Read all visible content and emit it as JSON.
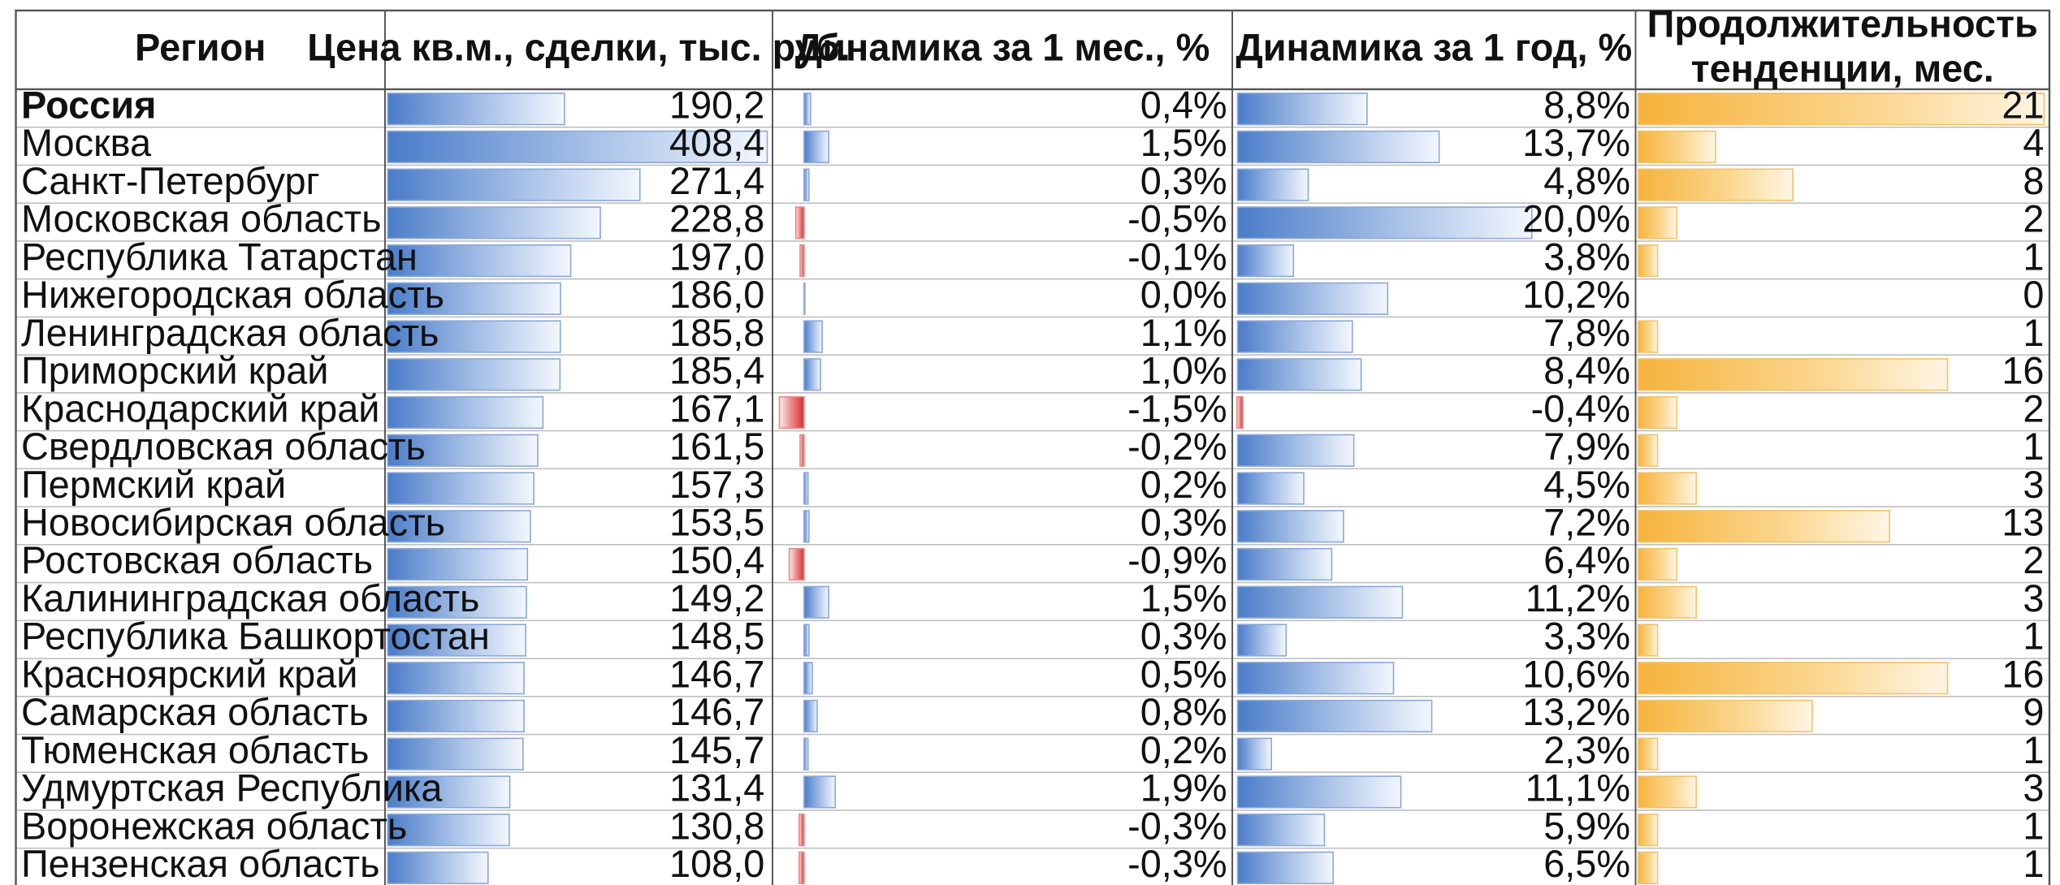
{
  "chart_data": {
    "type": "table",
    "columns": [
      "Регион",
      "Цена кв.м., сделки, тыс. руб.",
      "Динамика за 1 мес., %",
      "Динамика за 1 год, %",
      [
        "Продолжительность",
        "тенденции, мес."
      ]
    ],
    "rows": [
      {
        "region": "Россия",
        "price": 190.2,
        "price_text": "190,2",
        "m1": 0.4,
        "m1_text": "0,4%",
        "y1": 8.8,
        "y1_text": "8,8%",
        "dur": 21,
        "dur_text": "21",
        "bold": true
      },
      {
        "region": "Москва",
        "price": 408.4,
        "price_text": "408,4",
        "m1": 1.5,
        "m1_text": "1,5%",
        "y1": 13.7,
        "y1_text": "13,7%",
        "dur": 4,
        "dur_text": "4"
      },
      {
        "region": "Санкт-Петербург",
        "price": 271.4,
        "price_text": "271,4",
        "m1": 0.3,
        "m1_text": "0,3%",
        "y1": 4.8,
        "y1_text": "4,8%",
        "dur": 8,
        "dur_text": "8"
      },
      {
        "region": "Московская область",
        "price": 228.8,
        "price_text": "228,8",
        "m1": -0.5,
        "m1_text": "-0,5%",
        "y1": 20.0,
        "y1_text": "20,0%",
        "dur": 2,
        "dur_text": "2"
      },
      {
        "region": "Республика Татарстан",
        "price": 197.0,
        "price_text": "197,0",
        "m1": -0.1,
        "m1_text": "-0,1%",
        "y1": 3.8,
        "y1_text": "3,8%",
        "dur": 1,
        "dur_text": "1"
      },
      {
        "region": "Нижегородская область",
        "price": 186.0,
        "price_text": "186,0",
        "m1": 0.0,
        "m1_text": "0,0%",
        "y1": 10.2,
        "y1_text": "10,2%",
        "dur": 0,
        "dur_text": "0"
      },
      {
        "region": "Ленинградская область",
        "price": 185.8,
        "price_text": "185,8",
        "m1": 1.1,
        "m1_text": "1,1%",
        "y1": 7.8,
        "y1_text": "7,8%",
        "dur": 1,
        "dur_text": "1"
      },
      {
        "region": "Приморский край",
        "price": 185.4,
        "price_text": "185,4",
        "m1": 1.0,
        "m1_text": "1,0%",
        "y1": 8.4,
        "y1_text": "8,4%",
        "dur": 16,
        "dur_text": "16"
      },
      {
        "region": "Краснодарский край",
        "price": 167.1,
        "price_text": "167,1",
        "m1": -1.5,
        "m1_text": "-1,5%",
        "y1": -0.4,
        "y1_text": "-0,4%",
        "dur": 2,
        "dur_text": "2"
      },
      {
        "region": "Свердловская область",
        "price": 161.5,
        "price_text": "161,5",
        "m1": -0.2,
        "m1_text": "-0,2%",
        "y1": 7.9,
        "y1_text": "7,9%",
        "dur": 1,
        "dur_text": "1"
      },
      {
        "region": "Пермский край",
        "price": 157.3,
        "price_text": "157,3",
        "m1": 0.2,
        "m1_text": "0,2%",
        "y1": 4.5,
        "y1_text": "4,5%",
        "dur": 3,
        "dur_text": "3"
      },
      {
        "region": "Новосибирская область",
        "price": 153.5,
        "price_text": "153,5",
        "m1": 0.3,
        "m1_text": "0,3%",
        "y1": 7.2,
        "y1_text": "7,2%",
        "dur": 13,
        "dur_text": "13"
      },
      {
        "region": "Ростовская область",
        "price": 150.4,
        "price_text": "150,4",
        "m1": -0.9,
        "m1_text": "-0,9%",
        "y1": 6.4,
        "y1_text": "6,4%",
        "dur": 2,
        "dur_text": "2"
      },
      {
        "region": "Калининградская область",
        "price": 149.2,
        "price_text": "149,2",
        "m1": 1.5,
        "m1_text": "1,5%",
        "y1": 11.2,
        "y1_text": "11,2%",
        "dur": 3,
        "dur_text": "3"
      },
      {
        "region": "Республика Башкортостан",
        "price": 148.5,
        "price_text": "148,5",
        "m1": 0.3,
        "m1_text": "0,3%",
        "y1": 3.3,
        "y1_text": "3,3%",
        "dur": 1,
        "dur_text": "1"
      },
      {
        "region": "Красноярский край",
        "price": 146.7,
        "price_text": "146,7",
        "m1": 0.5,
        "m1_text": "0,5%",
        "y1": 10.6,
        "y1_text": "10,6%",
        "dur": 16,
        "dur_text": "16"
      },
      {
        "region": "Самарская область",
        "price": 146.7,
        "price_text": "146,7",
        "m1": 0.8,
        "m1_text": "0,8%",
        "y1": 13.2,
        "y1_text": "13,2%",
        "dur": 9,
        "dur_text": "9"
      },
      {
        "region": "Тюменская область",
        "price": 145.7,
        "price_text": "145,7",
        "m1": 0.2,
        "m1_text": "0,2%",
        "y1": 2.3,
        "y1_text": "2,3%",
        "dur": 1,
        "dur_text": "1"
      },
      {
        "region": "Удмуртская Республика",
        "price": 131.4,
        "price_text": "131,4",
        "m1": 1.9,
        "m1_text": "1,9%",
        "y1": 11.1,
        "y1_text": "11,1%",
        "dur": 3,
        "dur_text": "3"
      },
      {
        "region": "Воронежская область",
        "price": 130.8,
        "price_text": "130,8",
        "m1": -0.3,
        "m1_text": "-0,3%",
        "y1": 5.9,
        "y1_text": "5,9%",
        "dur": 1,
        "dur_text": "1"
      },
      {
        "region": "Пензенская область",
        "price": 108.0,
        "price_text": "108,0",
        "m1": -0.3,
        "m1_text": "-0,3%",
        "y1": 6.5,
        "y1_text": "6,5%",
        "dur": 1,
        "dur_text": "1"
      }
    ],
    "colors": {
      "blue_bar": "#4a7cc9",
      "red_bar": "#d93030",
      "orange_bar": "#f6b33b",
      "grid": "#bfbfbf",
      "border": "#555555"
    }
  }
}
